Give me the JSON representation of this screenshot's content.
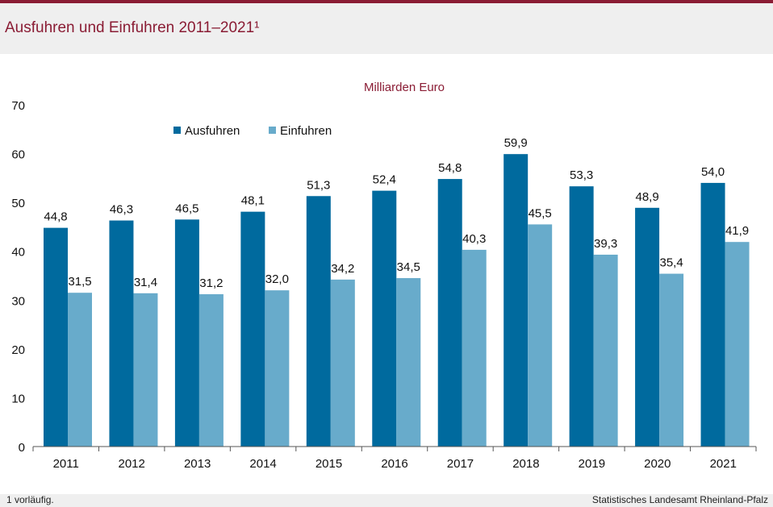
{
  "header": {
    "title": "Ausfuhren und Einfuhren 2011–2021¹"
  },
  "footer": {
    "note": "1 vorläufig.",
    "source": "Statistisches Landesamt Rheinland-Pfalz"
  },
  "colors": {
    "accent": "#8a1c34",
    "ausfuhren": "#006a9e",
    "einfuhren": "#68abcb"
  },
  "chart_data": {
    "type": "bar",
    "subtitle": "Milliarden Euro",
    "categories": [
      "2011",
      "2012",
      "2013",
      "2014",
      "2015",
      "2016",
      "2017",
      "2018",
      "2019",
      "2020",
      "2021"
    ],
    "series": [
      {
        "name": "Ausfuhren",
        "values": [
          44.8,
          46.3,
          46.5,
          48.1,
          51.3,
          52.4,
          54.8,
          59.9,
          53.3,
          48.9,
          54.0
        ],
        "labels": [
          "44,8",
          "46,3",
          "46,5",
          "48,1",
          "51,3",
          "52,4",
          "54,8",
          "59,9",
          "53,3",
          "48,9",
          "54,0"
        ]
      },
      {
        "name": "Einfuhren",
        "values": [
          31.5,
          31.4,
          31.2,
          32.0,
          34.2,
          34.5,
          40.3,
          45.5,
          39.3,
          35.4,
          41.9
        ],
        "labels": [
          "31,5",
          "31,4",
          "31,2",
          "32,0",
          "34,2",
          "34,5",
          "40,3",
          "45,5",
          "39,3",
          "35,4",
          "41,9"
        ]
      }
    ],
    "yticks": [
      "0",
      "10",
      "20",
      "30",
      "40",
      "50",
      "60",
      "70"
    ],
    "ylim": [
      0,
      70
    ],
    "grid": false,
    "legend": "top-left"
  }
}
